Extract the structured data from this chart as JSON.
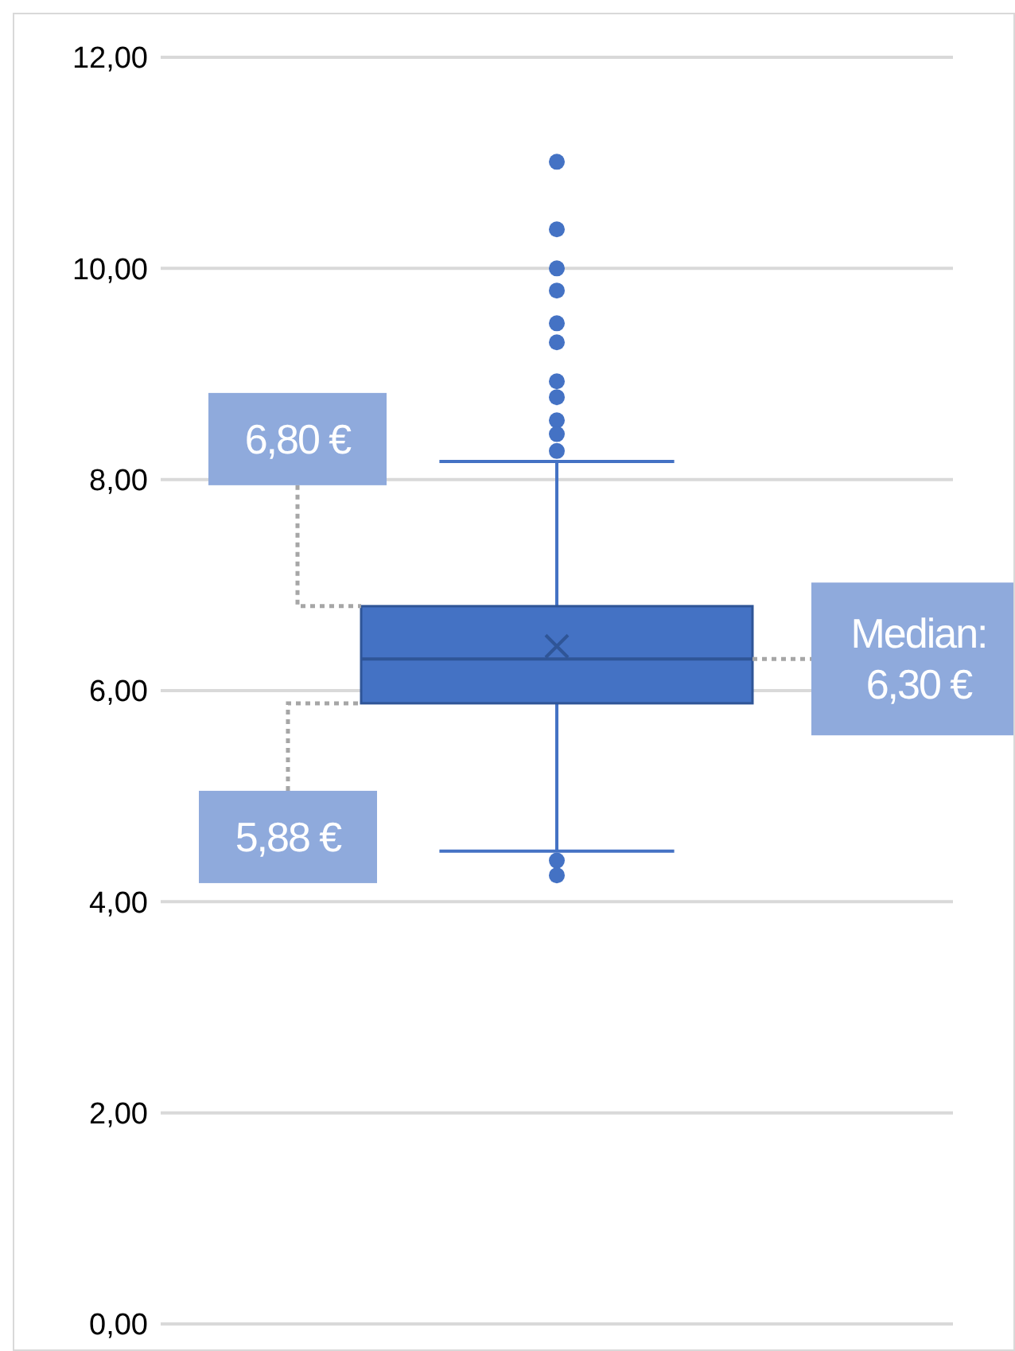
{
  "chart_data": {
    "type": "box",
    "categories": [
      null
    ],
    "color": "#4472c4",
    "boxes": [
      {
        "low": 4.48,
        "q1": 5.88,
        "median": 6.3,
        "q3": 6.8,
        "high": 8.17,
        "mean": 6.42,
        "outliers": [
          11.01,
          10.37,
          10.0,
          9.79,
          9.48,
          9.3,
          8.93,
          8.78,
          8.56,
          8.43,
          8.27,
          4.39,
          4.25
        ]
      }
    ],
    "ylim": [
      0,
      12
    ],
    "yticks": [
      {
        "value": 0,
        "label": "0,00"
      },
      {
        "value": 2,
        "label": "2,00"
      },
      {
        "value": 4,
        "label": "4,00"
      },
      {
        "value": 6,
        "label": "6,00"
      },
      {
        "value": 8,
        "label": "8,00"
      },
      {
        "value": 10,
        "label": "10,00"
      },
      {
        "value": 12,
        "label": "12,00"
      }
    ],
    "grid": "y",
    "annotations": [
      "6,80 €",
      "5,88 €",
      "Median:\n6,30 €"
    ]
  }
}
